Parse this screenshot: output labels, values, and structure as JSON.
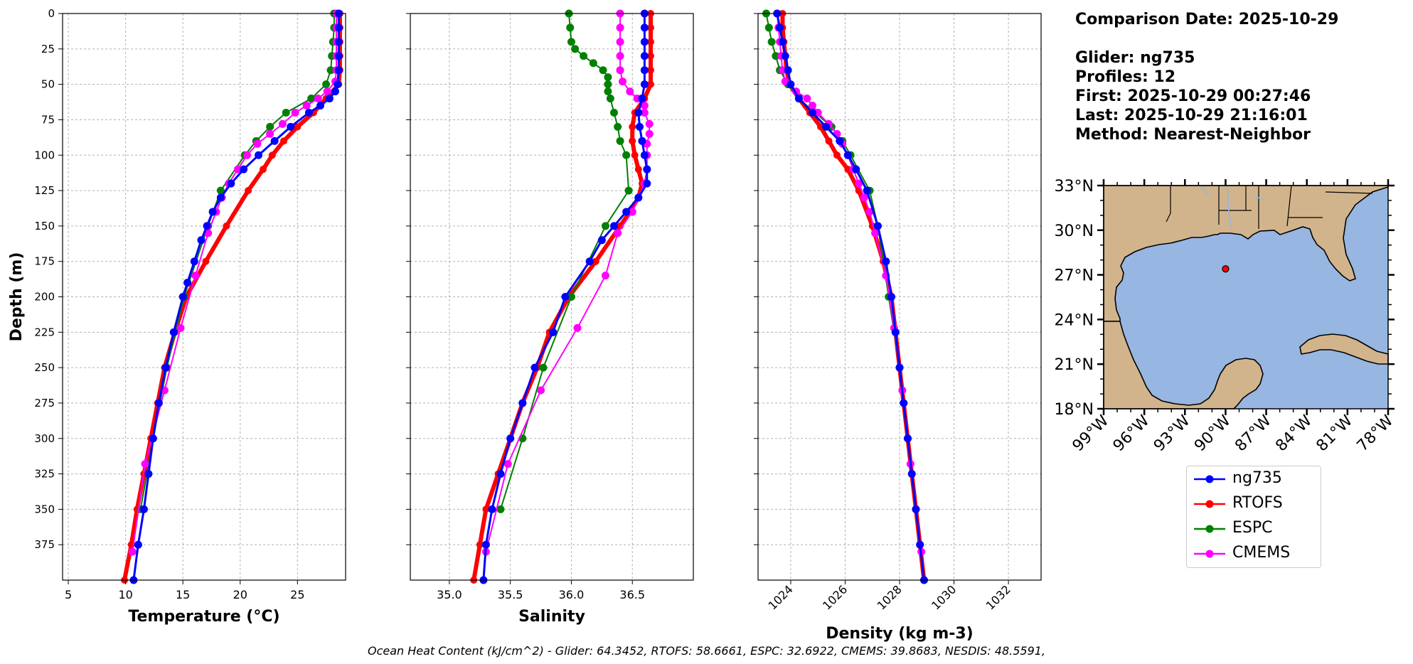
{
  "info": {
    "comparison_date": "Comparison Date: 2025-10-29",
    "glider": "Glider: ng735",
    "profiles": "Profiles: 12",
    "first": "First: 2025-10-29 00:27:46",
    "last": "Last: 2025-10-29 21:16:01",
    "method": "Method: Nearest-Neighbor"
  },
  "footer": "Ocean Heat Content (kJ/cm^2) - Glider: 64.3452,  RTOFS: 58.6661,  ESPC: 32.6922,  CMEMS: 39.8683,  NESDIS: 48.5591,",
  "colors": {
    "ng735": "#0000ff",
    "ng735_points": "#00ffff",
    "RTOFS": "#ff0000",
    "ESPC": "#008000",
    "CMEMS": "#ff00ff",
    "land": "#d2b48c",
    "ocean": "#97b6e1"
  },
  "legend": [
    {
      "name": "ng735",
      "color": "#0000ff"
    },
    {
      "name": "RTOFS",
      "color": "#ff0000"
    },
    {
      "name": "ESPC",
      "color": "#008000"
    },
    {
      "name": "CMEMS",
      "color": "#ff00ff"
    }
  ],
  "chart_data": [
    {
      "type": "line",
      "xlabel": "Temperature (°C)",
      "ylabel": "Depth (m)",
      "xlim": [
        4.5,
        29.2
      ],
      "ylim": [
        400,
        0
      ],
      "xticks": [
        5,
        10,
        15,
        20,
        25
      ],
      "yticks": [
        0,
        25,
        50,
        75,
        100,
        125,
        150,
        175,
        200,
        225,
        250,
        275,
        300,
        325,
        350,
        375
      ],
      "grid": true,
      "series": [
        {
          "name": "ng735",
          "depth": [
            0,
            10,
            20,
            30,
            40,
            50,
            55,
            60,
            65,
            70,
            80,
            90,
            100,
            110,
            120,
            130,
            140,
            150,
            160,
            175,
            190,
            200,
            225,
            250,
            275,
            300,
            325,
            350,
            375,
            400
          ],
          "values": [
            28.6,
            28.6,
            28.6,
            28.6,
            28.6,
            28.5,
            28.3,
            27.8,
            27.0,
            26.0,
            24.4,
            23.0,
            21.6,
            20.3,
            19.2,
            18.3,
            17.6,
            17.1,
            16.6,
            16.0,
            15.4,
            15.0,
            14.2,
            13.5,
            12.9,
            12.4,
            12.0,
            11.6,
            11.1,
            10.7
          ]
        },
        {
          "name": "RTOFS",
          "depth": [
            0,
            10,
            20,
            30,
            40,
            50,
            60,
            70,
            80,
            90,
            100,
            110,
            125,
            150,
            175,
            200,
            225,
            250,
            275,
            300,
            325,
            350,
            375,
            400
          ],
          "values": [
            28.7,
            28.7,
            28.7,
            28.7,
            28.7,
            28.6,
            27.5,
            26.4,
            25.0,
            23.8,
            22.8,
            22.0,
            20.7,
            18.8,
            17.0,
            15.3,
            14.3,
            13.4,
            12.8,
            12.2,
            11.6,
            11.0,
            10.5,
            9.9
          ]
        },
        {
          "name": "ESPC",
          "depth": [
            0,
            10,
            20,
            30,
            40,
            50,
            60,
            70,
            80,
            90,
            100,
            125,
            150,
            200,
            250,
            300,
            350
          ],
          "values": [
            28.2,
            28.2,
            28.1,
            28.0,
            27.9,
            27.5,
            26.2,
            24.0,
            22.6,
            21.4,
            20.4,
            18.3,
            17.2,
            15.1,
            13.6,
            12.4,
            11.3
          ]
        },
        {
          "name": "CMEMS",
          "depth": [
            0,
            10,
            20,
            30,
            40,
            48,
            55,
            60,
            65,
            70,
            78,
            85,
            92,
            100,
            110,
            120,
            130,
            140,
            155,
            185,
            222,
            266,
            318,
            380
          ],
          "values": [
            28.4,
            28.4,
            28.4,
            28.4,
            28.4,
            28.3,
            27.6,
            26.8,
            25.8,
            24.8,
            23.7,
            22.6,
            21.5,
            20.6,
            19.8,
            19.0,
            18.4,
            17.9,
            17.2,
            16.1,
            14.8,
            13.4,
            11.7,
            10.6
          ]
        }
      ]
    },
    {
      "type": "line",
      "xlabel": "Salinity",
      "xlim": [
        34.68,
        37.0
      ],
      "ylim": [
        400,
        0
      ],
      "xticks": [
        35.0,
        35.5,
        36.0,
        36.5
      ],
      "grid": true,
      "series": [
        {
          "name": "ng735",
          "depth": [
            0,
            10,
            20,
            30,
            40,
            50,
            60,
            70,
            80,
            90,
            100,
            110,
            120,
            130,
            140,
            150,
            160,
            175,
            200,
            225,
            250,
            275,
            300,
            325,
            350,
            375,
            400
          ],
          "values": [
            36.6,
            36.6,
            36.6,
            36.6,
            36.6,
            36.6,
            36.58,
            36.55,
            36.56,
            36.58,
            36.6,
            36.62,
            36.62,
            36.55,
            36.45,
            36.35,
            36.25,
            36.15,
            35.95,
            35.85,
            35.7,
            35.6,
            35.5,
            35.42,
            35.35,
            35.3,
            35.28
          ]
        },
        {
          "name": "RTOFS",
          "depth": [
            0,
            10,
            20,
            30,
            40,
            50,
            60,
            70,
            80,
            90,
            100,
            110,
            120,
            130,
            140,
            150,
            175,
            200,
            225,
            250,
            275,
            300,
            325,
            350,
            375,
            400
          ],
          "values": [
            36.65,
            36.65,
            36.65,
            36.65,
            36.65,
            36.65,
            36.6,
            36.52,
            36.5,
            36.5,
            36.52,
            36.55,
            36.58,
            36.55,
            36.48,
            36.4,
            36.2,
            35.98,
            35.82,
            35.72,
            35.6,
            35.5,
            35.4,
            35.3,
            35.25,
            35.2
          ]
        },
        {
          "name": "ESPC",
          "depth": [
            0,
            10,
            20,
            25,
            30,
            35,
            40,
            45,
            50,
            55,
            60,
            70,
            80,
            90,
            100,
            125,
            150,
            200,
            250,
            300,
            350
          ],
          "values": [
            35.98,
            35.99,
            36.0,
            36.03,
            36.1,
            36.18,
            36.26,
            36.3,
            36.3,
            36.3,
            36.32,
            36.35,
            36.38,
            36.4,
            36.45,
            36.47,
            36.28,
            36.0,
            35.77,
            35.6,
            35.42
          ]
        },
        {
          "name": "CMEMS",
          "depth": [
            0,
            10,
            20,
            30,
            40,
            48,
            55,
            60,
            65,
            70,
            78,
            85,
            92,
            100,
            110,
            120,
            130,
            140,
            155,
            185,
            222,
            266,
            318,
            380
          ],
          "values": [
            36.4,
            36.4,
            36.4,
            36.4,
            36.4,
            36.42,
            36.48,
            36.54,
            36.6,
            36.6,
            36.64,
            36.64,
            36.62,
            36.62,
            36.62,
            36.6,
            36.55,
            36.5,
            36.38,
            36.28,
            36.05,
            35.75,
            35.48,
            35.3
          ]
        }
      ]
    },
    {
      "type": "line",
      "xlabel": "Density (kg m-3)",
      "xlim": [
        1022.8,
        1033.2
      ],
      "ylim": [
        400,
        0
      ],
      "xticks": [
        1024,
        1026,
        1028,
        1030,
        1032
      ],
      "grid": true,
      "series": [
        {
          "name": "ng735",
          "depth": [
            0,
            10,
            20,
            30,
            40,
            50,
            60,
            70,
            80,
            90,
            100,
            110,
            125,
            150,
            175,
            200,
            225,
            250,
            275,
            300,
            325,
            350,
            375,
            400
          ],
          "values": [
            1023.5,
            1023.6,
            1023.7,
            1023.8,
            1023.9,
            1024.0,
            1024.3,
            1024.8,
            1025.3,
            1025.8,
            1026.1,
            1026.4,
            1026.8,
            1027.2,
            1027.5,
            1027.7,
            1027.85,
            1028.0,
            1028.15,
            1028.3,
            1028.45,
            1028.6,
            1028.75,
            1028.9
          ]
        },
        {
          "name": "RTOFS",
          "depth": [
            0,
            10,
            20,
            30,
            40,
            50,
            60,
            70,
            80,
            90,
            100,
            110,
            125,
            150,
            175,
            200,
            225,
            250,
            275,
            300,
            325,
            350,
            375,
            400
          ],
          "values": [
            1023.7,
            1023.7,
            1023.75,
            1023.8,
            1023.85,
            1023.95,
            1024.3,
            1024.7,
            1025.1,
            1025.4,
            1025.7,
            1026.1,
            1026.5,
            1027.0,
            1027.4,
            1027.7,
            1027.85,
            1028.0,
            1028.15,
            1028.3,
            1028.45,
            1028.6,
            1028.75,
            1028.9
          ]
        },
        {
          "name": "ESPC",
          "depth": [
            0,
            10,
            20,
            30,
            40,
            50,
            60,
            70,
            80,
            90,
            100,
            125,
            150,
            200,
            250,
            300,
            350
          ],
          "values": [
            1023.1,
            1023.2,
            1023.3,
            1023.45,
            1023.6,
            1023.9,
            1024.3,
            1024.9,
            1025.5,
            1025.9,
            1026.2,
            1026.9,
            1027.2,
            1027.6,
            1028.0,
            1028.3,
            1028.6
          ]
        },
        {
          "name": "CMEMS",
          "depth": [
            0,
            10,
            20,
            30,
            40,
            48,
            55,
            60,
            65,
            70,
            78,
            85,
            92,
            100,
            110,
            120,
            130,
            140,
            155,
            185,
            222,
            266,
            318,
            380
          ],
          "values": [
            1023.5,
            1023.55,
            1023.6,
            1023.65,
            1023.7,
            1023.8,
            1024.2,
            1024.6,
            1024.8,
            1025.0,
            1025.4,
            1025.7,
            1025.9,
            1026.1,
            1026.3,
            1026.5,
            1026.7,
            1026.9,
            1027.1,
            1027.5,
            1027.8,
            1028.1,
            1028.4,
            1028.8
          ]
        }
      ]
    },
    {
      "type": "map",
      "lon_range": [
        -99,
        -78
      ],
      "lat_range": [
        18,
        33
      ],
      "xticks": [
        "99°W",
        "96°W",
        "93°W",
        "90°W",
        "87°W",
        "84°W",
        "81°W",
        "78°W"
      ],
      "yticks": [
        "33°N",
        "30°N",
        "27°N",
        "24°N",
        "21°N",
        "18°N"
      ],
      "glider_position": {
        "lon": -90.0,
        "lat": 27.4
      }
    }
  ]
}
